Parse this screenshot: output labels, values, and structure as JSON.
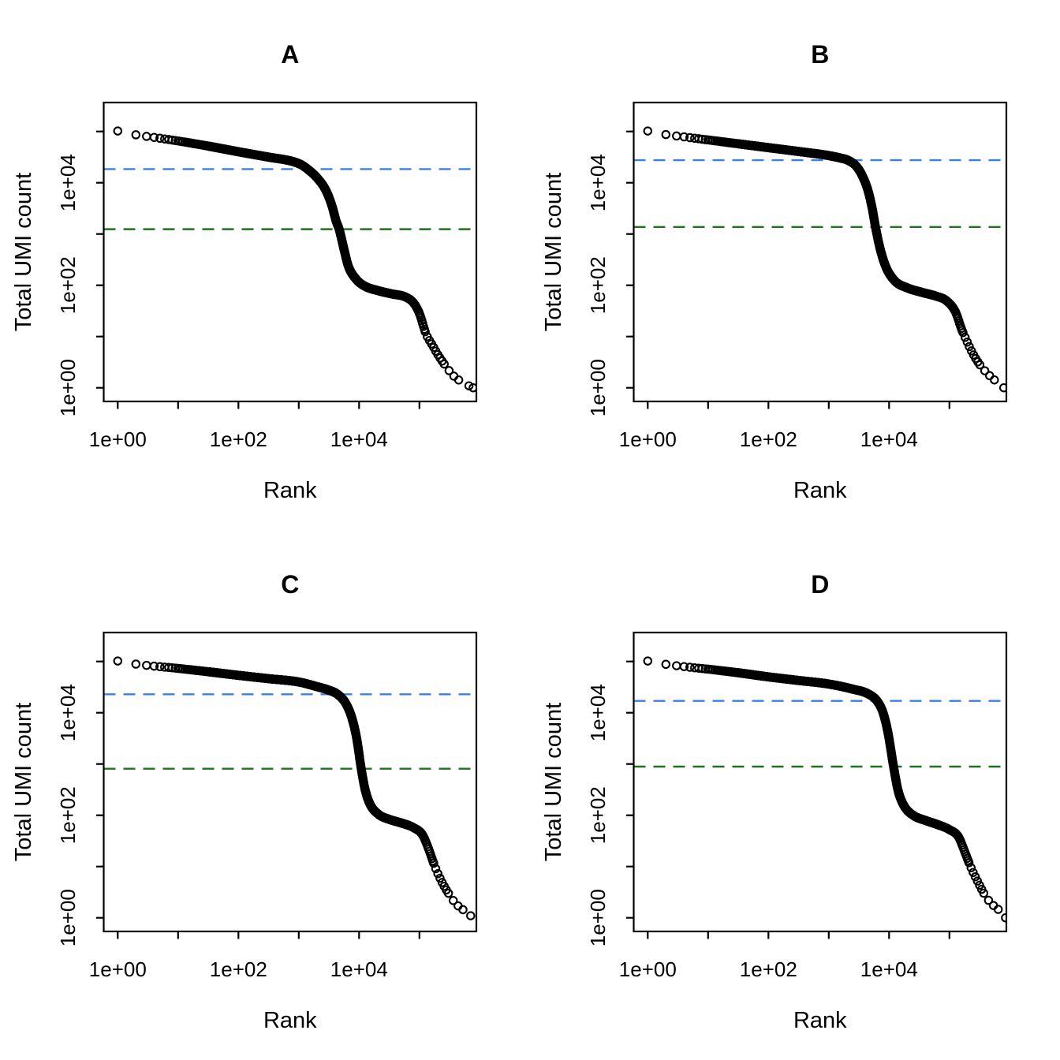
{
  "figure": {
    "background": "#FFFFFF",
    "layout": "2x2 panel grid of barcode rank plots",
    "ylabel": "Total UMI count",
    "xlabel": "Rank",
    "x_tick_labels": [
      "1e+00",
      "1e+02",
      "1e+04"
    ],
    "y_tick_labels": [
      "1e+00",
      "1e+02",
      "1e+04"
    ],
    "colors": {
      "points": "#000000",
      "axis": "#000000",
      "knee_line": "#3A80E8",
      "inflection_line": "#1D731D"
    }
  },
  "chart_data": [
    {
      "type": "scatter",
      "title": "A",
      "xlabel": "Rank",
      "ylabel": "Total UMI count",
      "x_scale": "log10",
      "y_scale": "log10",
      "marker": "open-circle",
      "x_ticks": [
        1,
        10,
        100,
        1000,
        10000,
        100000
      ],
      "y_ticks": [
        1,
        10,
        100,
        1000,
        10000,
        100000
      ],
      "xlim": [
        1,
        880000
      ],
      "ylim": [
        1,
        367000
      ],
      "knee_count": 18400,
      "inflection_count": 1240,
      "knee_rank": 1400,
      "inflection_rank": 4700,
      "max_count": 102000,
      "max_rank": 776000,
      "points_log10": [
        [
          0,
          5.01
        ],
        [
          0.3,
          4.935
        ],
        [
          0.6,
          4.885
        ],
        [
          1,
          4.815
        ],
        [
          1.5,
          4.715
        ],
        [
          2,
          4.605
        ],
        [
          2.5,
          4.5
        ],
        [
          2.9,
          4.415
        ],
        [
          3.05,
          4.345
        ],
        [
          3.147,
          4.265
        ],
        [
          3.3,
          4.1
        ],
        [
          3.45,
          3.85
        ],
        [
          3.55,
          3.55
        ],
        [
          3.62,
          3.25
        ],
        [
          3.67,
          3.09
        ],
        [
          3.75,
          2.7
        ],
        [
          3.82,
          2.38
        ],
        [
          3.95,
          2.12
        ],
        [
          4.1,
          1.98
        ],
        [
          4.3,
          1.9
        ],
        [
          4.55,
          1.83
        ],
        [
          4.75,
          1.78
        ],
        [
          4.9,
          1.66
        ],
        [
          5,
          1.45
        ],
        [
          5.107,
          1.06
        ],
        [
          5.22,
          0.82
        ],
        [
          5.32,
          0.62
        ],
        [
          5.45,
          0.4
        ],
        [
          5.56,
          0.24
        ],
        [
          5.72,
          0.1
        ],
        [
          5.89,
          0
        ]
      ]
    },
    {
      "type": "scatter",
      "title": "B",
      "xlabel": "Rank",
      "ylabel": "Total UMI count",
      "x_scale": "log10",
      "y_scale": "log10",
      "marker": "open-circle",
      "x_ticks": [
        1,
        10,
        100,
        1000,
        10000,
        100000
      ],
      "y_ticks": [
        1,
        10,
        100,
        1000,
        10000,
        100000
      ],
      "xlim": [
        1,
        880000
      ],
      "ylim": [
        1,
        367000
      ],
      "knee_count": 27600,
      "inflection_count": 1370,
      "knee_rank": 2070,
      "inflection_rank": 5940,
      "max_count": 102000,
      "max_rank": 794000,
      "points_log10": [
        [
          0,
          5.01
        ],
        [
          0.3,
          4.94
        ],
        [
          0.6,
          4.895
        ],
        [
          1,
          4.835
        ],
        [
          1.5,
          4.76
        ],
        [
          2,
          4.685
        ],
        [
          2.5,
          4.61
        ],
        [
          3,
          4.53
        ],
        [
          3.2,
          4.48
        ],
        [
          3.316,
          4.44
        ],
        [
          3.45,
          4.33
        ],
        [
          3.55,
          4.15
        ],
        [
          3.65,
          3.85
        ],
        [
          3.72,
          3.5
        ],
        [
          3.774,
          3.14
        ],
        [
          3.85,
          2.72
        ],
        [
          3.95,
          2.35
        ],
        [
          4.1,
          2.08
        ],
        [
          4.3,
          1.95
        ],
        [
          4.55,
          1.86
        ],
        [
          4.8,
          1.78
        ],
        [
          4.95,
          1.7
        ],
        [
          5.1,
          1.48
        ],
        [
          5.2,
          1.15
        ],
        [
          5.3,
          0.88
        ],
        [
          5.42,
          0.6
        ],
        [
          5.55,
          0.38
        ],
        [
          5.68,
          0.22
        ],
        [
          5.8,
          0.1
        ],
        [
          5.9,
          0
        ]
      ]
    },
    {
      "type": "scatter",
      "title": "C",
      "xlabel": "Rank",
      "ylabel": "Total UMI count",
      "x_scale": "log10",
      "y_scale": "log10",
      "marker": "open-circle",
      "x_ticks": [
        1,
        10,
        100,
        1000,
        10000,
        100000
      ],
      "y_ticks": [
        1,
        10,
        100,
        1000,
        10000,
        100000
      ],
      "xlim": [
        1,
        880000
      ],
      "ylim": [
        1,
        367000
      ],
      "knee_count": 22900,
      "inflection_count": 810,
      "knee_rank": 4400,
      "inflection_rank": 10800,
      "max_count": 102000,
      "max_rank": 708000,
      "points_log10": [
        [
          0,
          5.01
        ],
        [
          0.3,
          4.95
        ],
        [
          0.6,
          4.91
        ],
        [
          1,
          4.865
        ],
        [
          1.5,
          4.8
        ],
        [
          2,
          4.73
        ],
        [
          2.5,
          4.665
        ],
        [
          3,
          4.6
        ],
        [
          3.3,
          4.51
        ],
        [
          3.5,
          4.44
        ],
        [
          3.643,
          4.36
        ],
        [
          3.78,
          4.18
        ],
        [
          3.88,
          3.9
        ],
        [
          3.96,
          3.5
        ],
        [
          4.035,
          2.91
        ],
        [
          4.1,
          2.5
        ],
        [
          4.18,
          2.22
        ],
        [
          4.32,
          2.02
        ],
        [
          4.5,
          1.92
        ],
        [
          4.7,
          1.85
        ],
        [
          4.9,
          1.76
        ],
        [
          5.05,
          1.62
        ],
        [
          5.15,
          1.35
        ],
        [
          5.25,
          1.02
        ],
        [
          5.35,
          0.75
        ],
        [
          5.48,
          0.48
        ],
        [
          5.6,
          0.28
        ],
        [
          5.72,
          0.16
        ],
        [
          5.85,
          0.04
        ]
      ]
    },
    {
      "type": "scatter",
      "title": "D",
      "xlabel": "Rank",
      "ylabel": "Total UMI count",
      "x_scale": "log10",
      "y_scale": "log10",
      "marker": "open-circle",
      "x_ticks": [
        1,
        10,
        100,
        1000,
        10000,
        100000
      ],
      "y_ticks": [
        1,
        10,
        100,
        1000,
        10000,
        100000
      ],
      "xlim": [
        1,
        880000
      ],
      "ylim": [
        1,
        367000
      ],
      "knee_count": 17000,
      "inflection_count": 890,
      "knee_rank": 6300,
      "inflection_rank": 11900,
      "max_count": 102000,
      "max_rank": 851000,
      "points_log10": [
        [
          0,
          5.01
        ],
        [
          0.3,
          4.945
        ],
        [
          0.6,
          4.9
        ],
        [
          1,
          4.85
        ],
        [
          1.5,
          4.78
        ],
        [
          2,
          4.7
        ],
        [
          2.5,
          4.63
        ],
        [
          3,
          4.56
        ],
        [
          3.4,
          4.46
        ],
        [
          3.65,
          4.37
        ],
        [
          3.8,
          4.23
        ],
        [
          3.9,
          4
        ],
        [
          3.98,
          3.62
        ],
        [
          4.074,
          2.95
        ],
        [
          4.15,
          2.48
        ],
        [
          4.25,
          2.18
        ],
        [
          4.4,
          2
        ],
        [
          4.6,
          1.9
        ],
        [
          4.8,
          1.82
        ],
        [
          5,
          1.72
        ],
        [
          5.15,
          1.58
        ],
        [
          5.25,
          1.3
        ],
        [
          5.35,
          1
        ],
        [
          5.48,
          0.68
        ],
        [
          5.6,
          0.42
        ],
        [
          5.72,
          0.25
        ],
        [
          5.85,
          0.12
        ],
        [
          5.93,
          0
        ]
      ]
    }
  ]
}
